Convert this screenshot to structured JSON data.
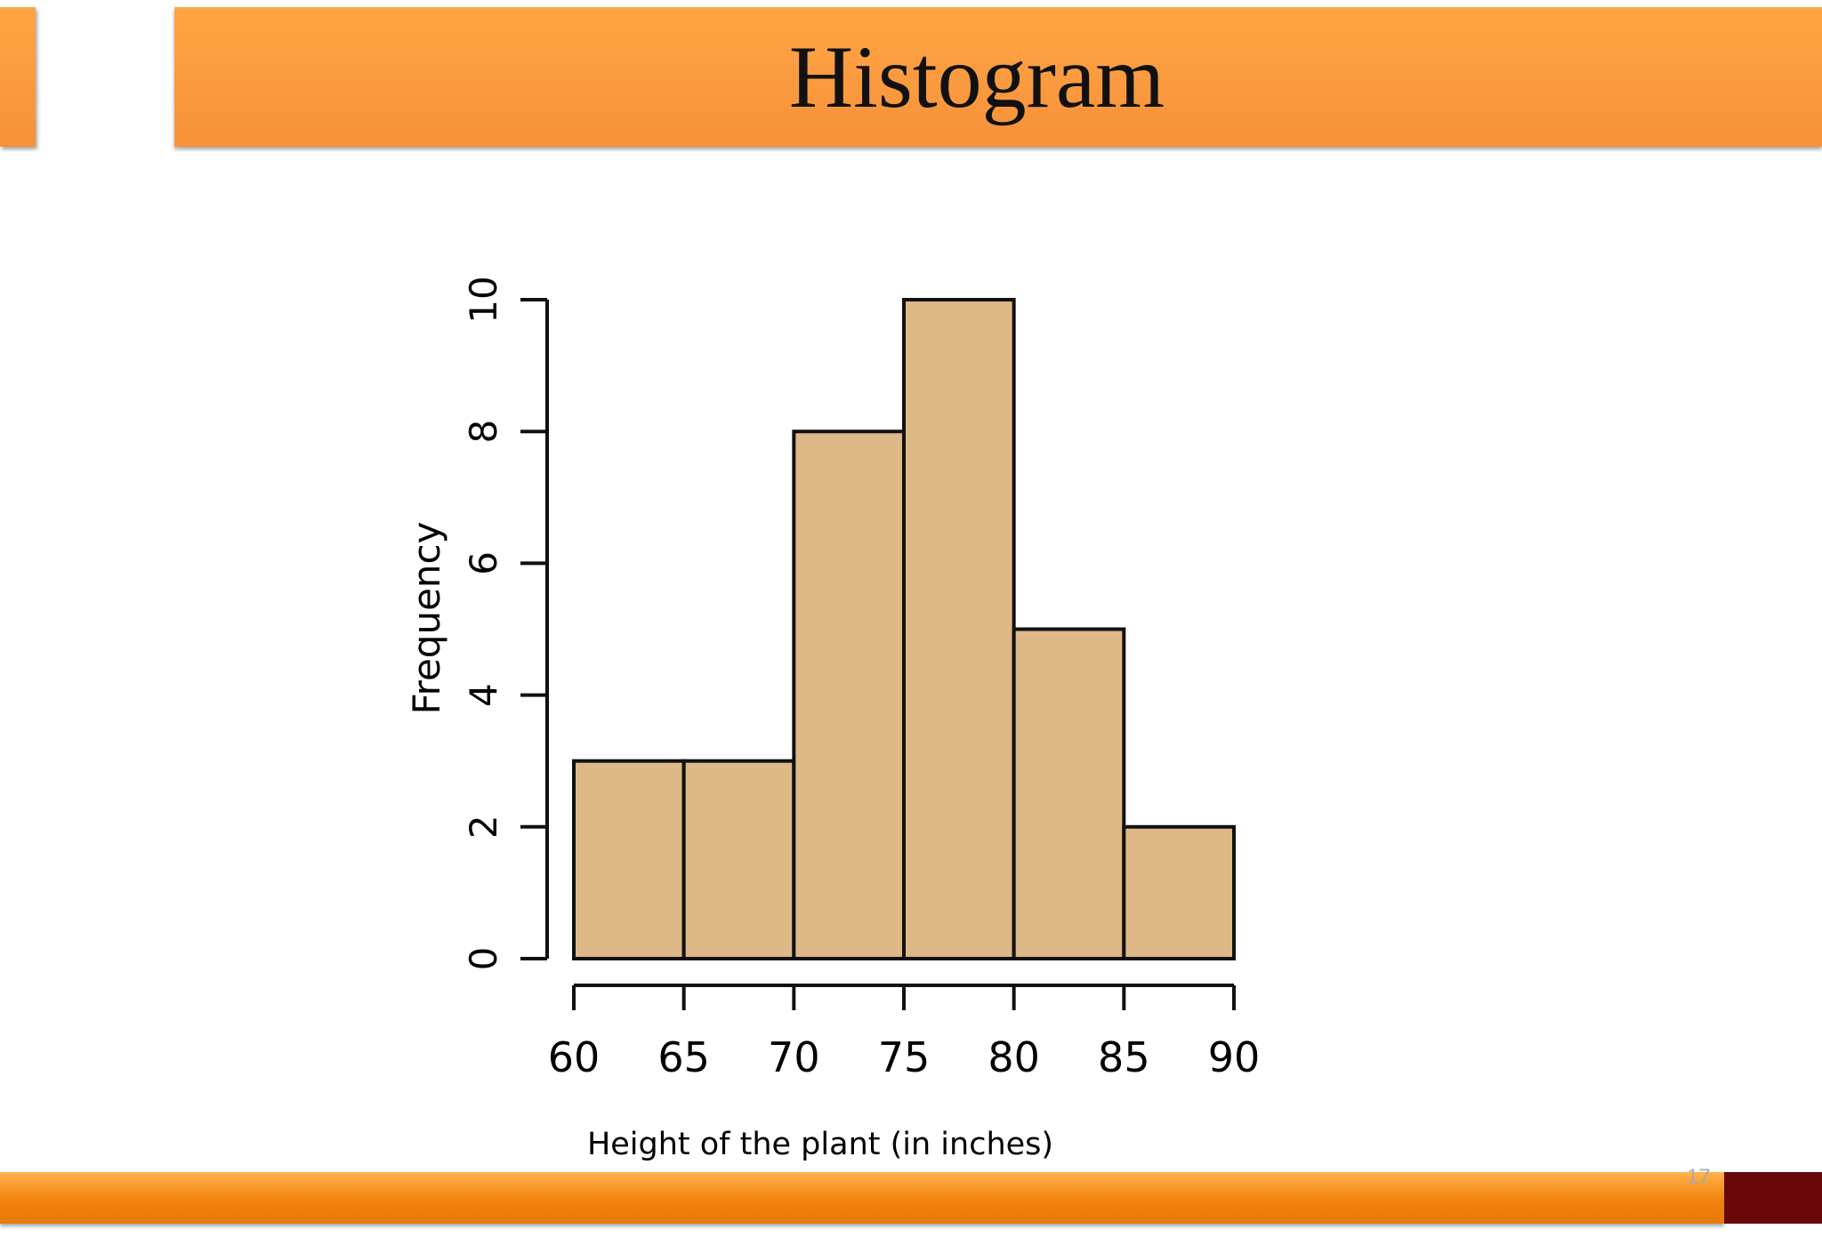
{
  "slide": {
    "title": "Histogram",
    "page_number": "17",
    "colors": {
      "banner": "#f7913a",
      "footer": "#f2820d",
      "footer_accent": "#680808",
      "bar_fill": "#deb887",
      "bar_stroke": "#111111"
    }
  },
  "chart_data": {
    "type": "bar",
    "title": "",
    "xlabel": "Height of the plant (in inches)",
    "ylabel": "Frequency",
    "bins": [
      {
        "from": 60,
        "to": 65,
        "value": 3
      },
      {
        "from": 65,
        "to": 70,
        "value": 3
      },
      {
        "from": 70,
        "to": 75,
        "value": 8
      },
      {
        "from": 75,
        "to": 80,
        "value": 10
      },
      {
        "from": 80,
        "to": 85,
        "value": 5
      },
      {
        "from": 85,
        "to": 90,
        "value": 2
      }
    ],
    "x_ticks": [
      60,
      65,
      70,
      75,
      80,
      85,
      90
    ],
    "y_ticks": [
      0,
      2,
      4,
      6,
      8,
      10
    ],
    "xlim": [
      60,
      90
    ],
    "ylim": [
      0,
      10
    ],
    "grid": false,
    "legend": "none"
  }
}
